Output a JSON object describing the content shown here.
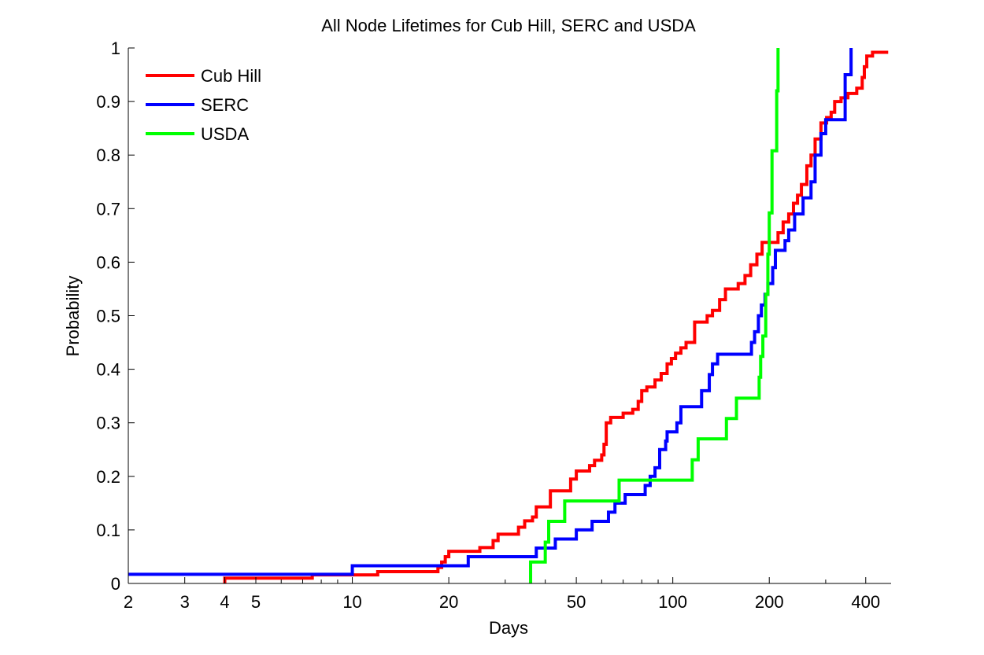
{
  "chart_data": {
    "type": "line",
    "title": "All Node Lifetimes for Cub Hill, SERC and USDA",
    "xlabel": "Days",
    "ylabel": "Probability",
    "xscale": "log",
    "xlim": [
      2,
      480
    ],
    "ylim": [
      0,
      1
    ],
    "xticks": [
      2,
      3,
      4,
      5,
      10,
      20,
      50,
      100,
      200,
      400
    ],
    "xtick_labels": [
      "2",
      "3",
      "4",
      "5",
      "10",
      "20",
      "50",
      "100",
      "200",
      "400"
    ],
    "yticks": [
      0,
      0.1,
      0.2,
      0.3,
      0.4,
      0.5,
      0.6,
      0.7,
      0.8,
      0.9,
      1
    ],
    "ytick_labels": [
      "0",
      "0.1",
      "0.2",
      "0.3",
      "0.4",
      "0.5",
      "0.6",
      "0.7",
      "0.8",
      "0.9",
      "1"
    ],
    "grid": false,
    "legend_position": "top-left",
    "series": [
      {
        "name": "Cub Hill",
        "color": "#ff0000",
        "step": true,
        "points": [
          [
            4,
            0
          ],
          [
            4,
            0.01
          ],
          [
            7.5,
            0.01
          ],
          [
            7.5,
            0.016
          ],
          [
            12,
            0.016
          ],
          [
            12,
            0.022
          ],
          [
            18.5,
            0.022
          ],
          [
            18.5,
            0.03
          ],
          [
            19,
            0.03
          ],
          [
            19,
            0.04
          ],
          [
            19.5,
            0.04
          ],
          [
            19.5,
            0.05
          ],
          [
            20,
            0.05
          ],
          [
            20,
            0.06
          ],
          [
            25,
            0.06
          ],
          [
            25,
            0.067
          ],
          [
            27.5,
            0.067
          ],
          [
            27.5,
            0.08
          ],
          [
            28.5,
            0.08
          ],
          [
            28.5,
            0.092
          ],
          [
            33,
            0.092
          ],
          [
            33,
            0.105
          ],
          [
            34.5,
            0.105
          ],
          [
            34.5,
            0.117
          ],
          [
            36.5,
            0.117
          ],
          [
            36.5,
            0.124
          ],
          [
            37.5,
            0.124
          ],
          [
            37.5,
            0.143
          ],
          [
            41.5,
            0.143
          ],
          [
            41.5,
            0.173
          ],
          [
            48,
            0.173
          ],
          [
            48,
            0.195
          ],
          [
            50,
            0.195
          ],
          [
            50,
            0.21
          ],
          [
            55,
            0.21
          ],
          [
            55,
            0.22
          ],
          [
            57,
            0.22
          ],
          [
            57,
            0.23
          ],
          [
            60,
            0.23
          ],
          [
            60,
            0.24
          ],
          [
            61,
            0.24
          ],
          [
            61,
            0.26
          ],
          [
            62,
            0.26
          ],
          [
            62,
            0.3
          ],
          [
            64,
            0.3
          ],
          [
            64,
            0.31
          ],
          [
            70,
            0.31
          ],
          [
            70,
            0.318
          ],
          [
            75,
            0.318
          ],
          [
            75,
            0.325
          ],
          [
            78,
            0.325
          ],
          [
            78,
            0.34
          ],
          [
            80,
            0.34
          ],
          [
            80,
            0.36
          ],
          [
            83,
            0.36
          ],
          [
            83,
            0.367
          ],
          [
            88,
            0.367
          ],
          [
            88,
            0.38
          ],
          [
            92,
            0.38
          ],
          [
            92,
            0.392
          ],
          [
            96,
            0.392
          ],
          [
            96,
            0.41
          ],
          [
            99,
            0.41
          ],
          [
            99,
            0.42
          ],
          [
            102,
            0.42
          ],
          [
            102,
            0.43
          ],
          [
            106,
            0.43
          ],
          [
            106,
            0.44
          ],
          [
            110,
            0.44
          ],
          [
            110,
            0.45
          ],
          [
            117,
            0.45
          ],
          [
            117,
            0.488
          ],
          [
            128,
            0.488
          ],
          [
            128,
            0.5
          ],
          [
            133,
            0.5
          ],
          [
            133,
            0.51
          ],
          [
            140,
            0.51
          ],
          [
            140,
            0.53
          ],
          [
            146,
            0.53
          ],
          [
            146,
            0.55
          ],
          [
            160,
            0.55
          ],
          [
            160,
            0.56
          ],
          [
            168,
            0.56
          ],
          [
            168,
            0.575
          ],
          [
            175,
            0.575
          ],
          [
            175,
            0.595
          ],
          [
            183,
            0.595
          ],
          [
            183,
            0.615
          ],
          [
            190,
            0.615
          ],
          [
            190,
            0.637
          ],
          [
            213,
            0.637
          ],
          [
            213,
            0.655
          ],
          [
            221,
            0.655
          ],
          [
            221,
            0.675
          ],
          [
            230,
            0.675
          ],
          [
            230,
            0.69
          ],
          [
            238,
            0.69
          ],
          [
            238,
            0.71
          ],
          [
            245,
            0.71
          ],
          [
            245,
            0.725
          ],
          [
            252,
            0.725
          ],
          [
            252,
            0.745
          ],
          [
            262,
            0.745
          ],
          [
            262,
            0.78
          ],
          [
            270,
            0.78
          ],
          [
            270,
            0.8
          ],
          [
            278,
            0.8
          ],
          [
            278,
            0.83
          ],
          [
            290,
            0.83
          ],
          [
            290,
            0.86
          ],
          [
            302,
            0.86
          ],
          [
            302,
            0.87
          ],
          [
            312,
            0.87
          ],
          [
            312,
            0.88
          ],
          [
            320,
            0.88
          ],
          [
            320,
            0.9
          ],
          [
            335,
            0.9
          ],
          [
            335,
            0.907
          ],
          [
            352,
            0.907
          ],
          [
            352,
            0.915
          ],
          [
            375,
            0.915
          ],
          [
            375,
            0.925
          ],
          [
            390,
            0.925
          ],
          [
            390,
            0.945
          ],
          [
            396,
            0.945
          ],
          [
            396,
            0.965
          ],
          [
            403,
            0.965
          ],
          [
            403,
            0.985
          ],
          [
            420,
            0.985
          ],
          [
            420,
            0.992
          ],
          [
            470,
            0.992
          ]
        ]
      },
      {
        "name": "SERC",
        "color": "#0000ff",
        "step": true,
        "points": [
          [
            2,
            0.017
          ],
          [
            10,
            0.017
          ],
          [
            10,
            0.033
          ],
          [
            23,
            0.033
          ],
          [
            23,
            0.05
          ],
          [
            37.5,
            0.05
          ],
          [
            37.5,
            0.066
          ],
          [
            43,
            0.066
          ],
          [
            43,
            0.083
          ],
          [
            50,
            0.083
          ],
          [
            50,
            0.1
          ],
          [
            56,
            0.1
          ],
          [
            56,
            0.116
          ],
          [
            63,
            0.116
          ],
          [
            63,
            0.133
          ],
          [
            66,
            0.133
          ],
          [
            66,
            0.15
          ],
          [
            71,
            0.15
          ],
          [
            71,
            0.166
          ],
          [
            82,
            0.166
          ],
          [
            82,
            0.183
          ],
          [
            85,
            0.183
          ],
          [
            85,
            0.2
          ],
          [
            88,
            0.2
          ],
          [
            88,
            0.216
          ],
          [
            91,
            0.216
          ],
          [
            91,
            0.25
          ],
          [
            95,
            0.25
          ],
          [
            95,
            0.266
          ],
          [
            96,
            0.266
          ],
          [
            96,
            0.283
          ],
          [
            103,
            0.283
          ],
          [
            103,
            0.3
          ],
          [
            106,
            0.3
          ],
          [
            106,
            0.33
          ],
          [
            123,
            0.33
          ],
          [
            123,
            0.36
          ],
          [
            130,
            0.36
          ],
          [
            130,
            0.39
          ],
          [
            133,
            0.39
          ],
          [
            133,
            0.41
          ],
          [
            138,
            0.41
          ],
          [
            138,
            0.428
          ],
          [
            176,
            0.428
          ],
          [
            176,
            0.45
          ],
          [
            180,
            0.45
          ],
          [
            180,
            0.47
          ],
          [
            185,
            0.47
          ],
          [
            185,
            0.5
          ],
          [
            189,
            0.5
          ],
          [
            189,
            0.52
          ],
          [
            194,
            0.52
          ],
          [
            194,
            0.54
          ],
          [
            198,
            0.54
          ],
          [
            198,
            0.56
          ],
          [
            205,
            0.56
          ],
          [
            205,
            0.59
          ],
          [
            209,
            0.59
          ],
          [
            209,
            0.622
          ],
          [
            224,
            0.622
          ],
          [
            224,
            0.64
          ],
          [
            230,
            0.64
          ],
          [
            230,
            0.66
          ],
          [
            240,
            0.66
          ],
          [
            240,
            0.69
          ],
          [
            255,
            0.69
          ],
          [
            255,
            0.72
          ],
          [
            270,
            0.72
          ],
          [
            270,
            0.75
          ],
          [
            278,
            0.75
          ],
          [
            278,
            0.8
          ],
          [
            290,
            0.8
          ],
          [
            290,
            0.84
          ],
          [
            300,
            0.84
          ],
          [
            300,
            0.866
          ],
          [
            345,
            0.866
          ],
          [
            345,
            0.95
          ],
          [
            360,
            0.95
          ],
          [
            360,
            1
          ]
        ]
      },
      {
        "name": "USDA",
        "color": "#00ff00",
        "step": true,
        "points": [
          [
            36,
            0
          ],
          [
            36,
            0.04
          ],
          [
            40,
            0.04
          ],
          [
            40,
            0.077
          ],
          [
            41,
            0.077
          ],
          [
            41,
            0.116
          ],
          [
            46,
            0.116
          ],
          [
            46,
            0.154
          ],
          [
            68,
            0.154
          ],
          [
            68,
            0.193
          ],
          [
            115,
            0.193
          ],
          [
            115,
            0.231
          ],
          [
            120,
            0.231
          ],
          [
            120,
            0.27
          ],
          [
            147,
            0.27
          ],
          [
            147,
            0.308
          ],
          [
            158,
            0.308
          ],
          [
            158,
            0.346
          ],
          [
            186,
            0.346
          ],
          [
            186,
            0.385
          ],
          [
            188,
            0.385
          ],
          [
            188,
            0.424
          ],
          [
            191,
            0.424
          ],
          [
            191,
            0.462
          ],
          [
            195,
            0.462
          ],
          [
            195,
            0.54
          ],
          [
            198,
            0.54
          ],
          [
            198,
            0.615
          ],
          [
            200,
            0.615
          ],
          [
            200,
            0.692
          ],
          [
            204,
            0.692
          ],
          [
            204,
            0.808
          ],
          [
            211,
            0.808
          ],
          [
            211,
            0.92
          ],
          [
            213,
            0.92
          ],
          [
            213,
            1
          ]
        ]
      }
    ]
  }
}
